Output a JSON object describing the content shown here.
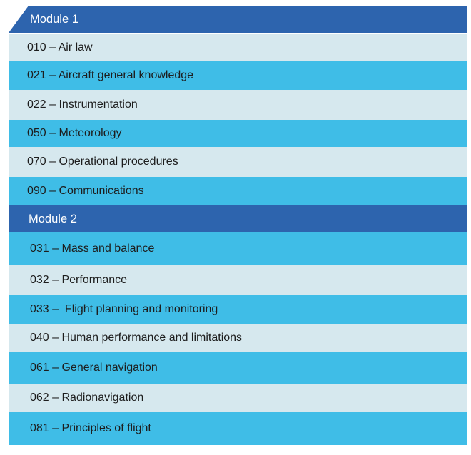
{
  "modules": [
    {
      "title": "Module 1",
      "subjects": [
        "010 – Air law",
        "021 – Aircraft general knowledge",
        "022 – Instrumentation",
        "050 – Meteorology",
        "070 – Operational procedures",
        "090 – Communications"
      ]
    },
    {
      "title": "Module 2",
      "subjects": [
        "031 – Mass and balance",
        "032 – Performance",
        "033 –  Flight planning and monitoring",
        "040 – Human performance and limitations",
        "061 – General navigation",
        "062 – Radionavigation",
        "081 – Principles of flight"
      ]
    }
  ],
  "colors": {
    "header": "#2d64ae",
    "row_light": "#d6e8ee",
    "row_blue": "#3fbde7"
  }
}
